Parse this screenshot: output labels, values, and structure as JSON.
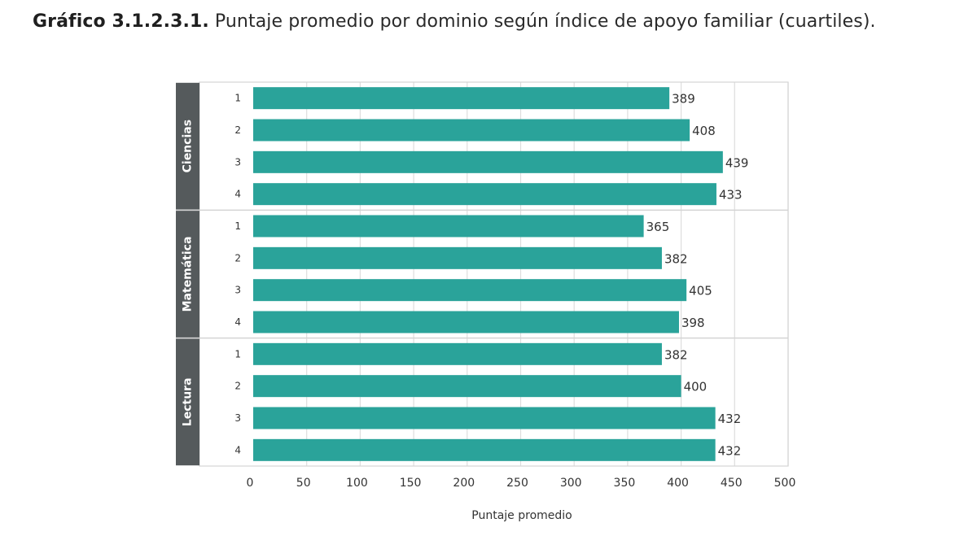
{
  "title": {
    "number": "Gráfico 3.1.2.3.1.",
    "text": "Puntaje promedio por dominio según índice de apoyo familiar (cuartiles)."
  },
  "chart_data": {
    "type": "bar",
    "orientation": "horizontal",
    "xlabel": "Puntaje promedio",
    "xlim": [
      0,
      500
    ],
    "xticks": [
      0,
      50,
      100,
      150,
      200,
      250,
      300,
      350,
      400,
      450,
      500
    ],
    "grid": true,
    "bar_color": "#2aa39a",
    "group_label_bg": "#555a5c",
    "groups": [
      {
        "name": "Ciencias",
        "categories": [
          "1",
          "2",
          "3",
          "4"
        ],
        "values": [
          389,
          408,
          439,
          433
        ]
      },
      {
        "name": "Matemática",
        "categories": [
          "1",
          "2",
          "3",
          "4"
        ],
        "values": [
          365,
          382,
          405,
          398
        ]
      },
      {
        "name": "Lectura",
        "categories": [
          "1",
          "2",
          "3",
          "4"
        ],
        "values": [
          382,
          400,
          432,
          432
        ]
      }
    ]
  }
}
